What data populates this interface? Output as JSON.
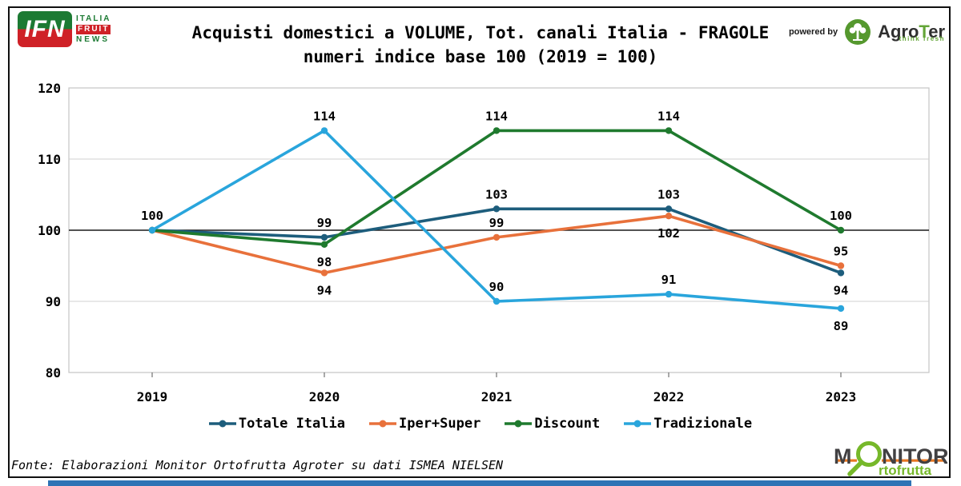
{
  "header": {
    "ifn_logo": {
      "abbr": "IFN",
      "line1": "ITALIA",
      "line2": "FRUIT",
      "line3": "NEWS"
    },
    "title_line1": "Acquisti domestici a VOLUME, Tot. canali Italia - FRAGOLE",
    "title_line2": "numeri indice base 100 (2019 = 100)",
    "powered_by": "powered by",
    "agroter_logo": {
      "agro": "Agro",
      "t": "T",
      "er": "er",
      "tagline": "think fresh"
    }
  },
  "chart_data": {
    "type": "line",
    "title": "Acquisti domestici a VOLUME, Tot. canali Italia - FRAGOLE",
    "subtitle": "numeri indice base 100 (2019 = 100)",
    "categories": [
      "2019",
      "2020",
      "2021",
      "2022",
      "2023"
    ],
    "ylim": [
      80,
      120
    ],
    "yticks": [
      120,
      110,
      100,
      90,
      80
    ],
    "baseline": 100,
    "grid": "horizontal",
    "legend_position": "bottom",
    "series": [
      {
        "name": "Totale Italia",
        "color": "#1D5D7C",
        "values": [
          100,
          99,
          103,
          103,
          94
        ],
        "point_labels": [
          "100",
          "99",
          "103",
          "103",
          "94"
        ],
        "label_pos": [
          "above",
          "above",
          "above",
          "above",
          "below"
        ]
      },
      {
        "name": "Iper+Super",
        "color": "#E8713B",
        "values": [
          100,
          94,
          99,
          102,
          95
        ],
        "point_labels": [
          "",
          "94",
          "99",
          "102",
          "95"
        ],
        "label_pos": [
          "",
          "below",
          "above",
          "below",
          "above"
        ]
      },
      {
        "name": "Discount",
        "color": "#1F7A2E",
        "values": [
          100,
          98,
          114,
          114,
          100
        ],
        "point_labels": [
          "",
          "98",
          "114",
          "114",
          "100"
        ],
        "label_pos": [
          "",
          "below",
          "above",
          "above",
          "above"
        ]
      },
      {
        "name": "Tradizionale",
        "color": "#29A5DC",
        "values": [
          100,
          114,
          90,
          91,
          89
        ],
        "point_labels": [
          "",
          "114",
          "90",
          "91",
          "89"
        ],
        "label_pos": [
          "",
          "above",
          "above",
          "above",
          "below"
        ]
      }
    ]
  },
  "footer": {
    "source": "Fonte: Elaborazioni Monitor Ortofrutta Agroter su dati ISMEA NIELSEN",
    "monitor_logo": {
      "m": "M",
      "nitor": "NITOR",
      "sub": "rtofrutta"
    }
  },
  "colors": {
    "baseline": "#1a1a1a",
    "gridline": "#d0d0d0",
    "plot_border": "#c5c5c5",
    "bottom_bar": "#2E73B5",
    "ifn_green": "#1C7A33",
    "ifn_red": "#CF2127",
    "agroter_green": "#55982E",
    "monitor_green": "#76B82A",
    "monitor_orange": "#E87722",
    "monitor_gray": "#414042"
  }
}
